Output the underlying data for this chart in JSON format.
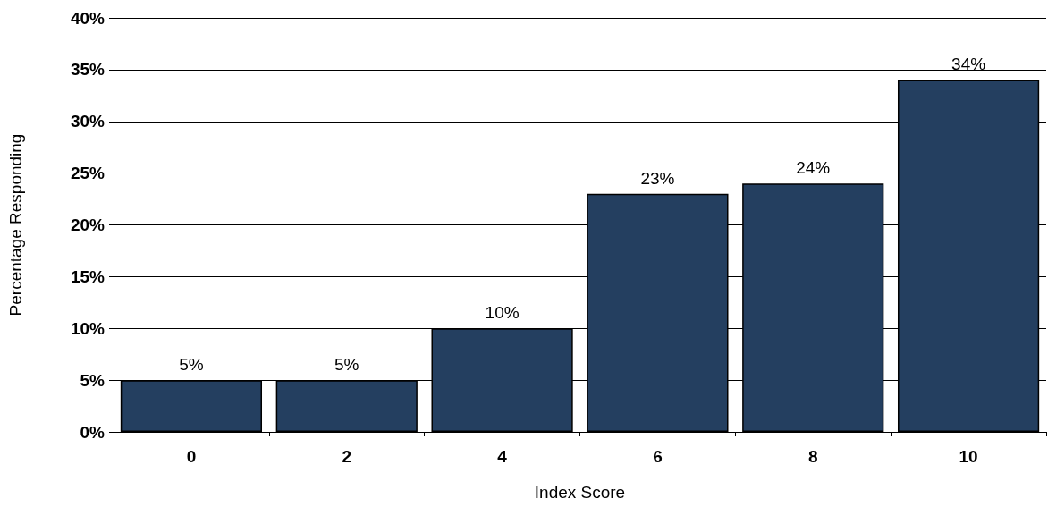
{
  "chart_data": {
    "type": "bar",
    "xlabel": "Index Score",
    "ylabel": "Percentage Responding",
    "categories": [
      "0",
      "2",
      "4",
      "6",
      "8",
      "10"
    ],
    "values": [
      5,
      5,
      10,
      23,
      24,
      34
    ],
    "color": "#243f60",
    "data_labels": true,
    "value_labels": [
      "5%",
      "5%",
      "10%",
      "23%",
      "24%",
      "34%"
    ],
    "ylim": [
      0,
      40
    ],
    "yticks": [
      {
        "value": 0,
        "label": "0%"
      },
      {
        "value": 5,
        "label": "5%"
      },
      {
        "value": 10,
        "label": "10%"
      },
      {
        "value": 15,
        "label": "15%"
      },
      {
        "value": 20,
        "label": "20%"
      },
      {
        "value": 25,
        "label": "25%"
      },
      {
        "value": 30,
        "label": "30%"
      },
      {
        "value": 35,
        "label": "35%"
      },
      {
        "value": 40,
        "label": "40%"
      }
    ],
    "grid": "y"
  }
}
